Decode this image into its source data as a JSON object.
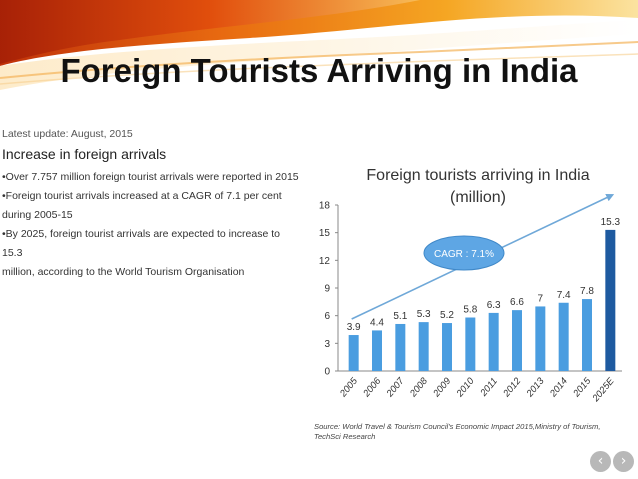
{
  "slide": {
    "title": "Foreign Tourists Arriving in India"
  },
  "info": {
    "last_update": "Latest update: August, 2015",
    "heading": "Increase in foreign arrivals",
    "bullets": [
      "•Over 7.757 million foreign tourist arrivals were reported in 2015",
      "•Foreign tourist arrivals increased at a CAGR of 7.1 per cent",
      "during 2005-15",
      "•By 2025, foreign tourist arrivals are expected to increase to 15.3",
      "million, according to the World Tourism Organisation"
    ]
  },
  "chart_data": {
    "type": "bar",
    "title": "Foreign tourists arriving in India",
    "subtitle": "(million)",
    "categories": [
      "2005",
      "2006",
      "2007",
      "2008",
      "2009",
      "2010",
      "2011",
      "2012",
      "2013",
      "2014",
      "2015",
      "2025E"
    ],
    "values": [
      3.9,
      4.4,
      5.1,
      5.3,
      5.2,
      5.8,
      6.3,
      6.6,
      7,
      7.4,
      7.8,
      15.3
    ],
    "value_labels": [
      "3.9",
      "4.4",
      "5.1",
      "5.3",
      "5.2",
      "5.8",
      "6.3",
      "6.6",
      "7",
      "7.4",
      "7.8",
      "15.3"
    ],
    "yticks": [
      0,
      3,
      6,
      9,
      12,
      15,
      18
    ],
    "ylim": [
      0,
      18
    ],
    "xlabel": "",
    "ylabel": "",
    "grid": false,
    "legend": "none",
    "annotation": "CAGR : 7.1%",
    "source": "Source: World Travel & Tourism Council's Economic Impact 2015,Ministry of Tourism,",
    "source_line2": "TechSci Research",
    "colors": {
      "bar": "#4a9de0",
      "bar_highlight": "#1e5aa0",
      "arrow": "#6fa8d8",
      "ellipse": "#5ea6e4"
    }
  },
  "nav": {
    "prev_icon": "chevron-left-icon",
    "next_icon": "chevron-right-icon",
    "prev_glyph": "‹",
    "next_glyph": "›"
  }
}
